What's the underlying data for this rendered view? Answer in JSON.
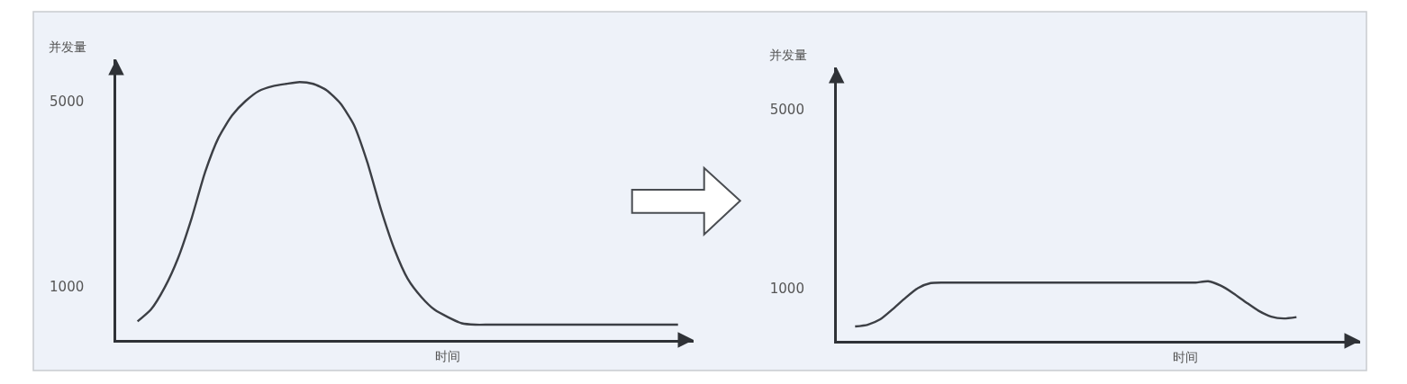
{
  "chart_data": [
    {
      "type": "line",
      "xlabel": "时间",
      "ylabel": "并发量",
      "categories": [
        null,
        null,
        null,
        null,
        null,
        null,
        null,
        null,
        null,
        null,
        null,
        null,
        null,
        null,
        null,
        null,
        null,
        null,
        null,
        null,
        null,
        null,
        null,
        null,
        null,
        null,
        null,
        null,
        null,
        null,
        null,
        null,
        null,
        null,
        null,
        null,
        null,
        null,
        null,
        null,
        null
      ],
      "series": [
        {
          "color": "#3c3f45",
          "values": [
            240,
            500,
            970,
            1610,
            2470,
            3470,
            4220,
            4700,
            5010,
            5230,
            5330,
            5380,
            5420,
            5380,
            5240,
            4960,
            4500,
            3690,
            2680,
            1810,
            1160,
            770,
            490,
            330,
            200,
            170,
            170,
            170,
            170,
            170,
            170,
            170,
            170,
            170,
            170,
            170,
            170,
            170,
            170,
            170,
            170
          ]
        }
      ],
      "ylim": [
        -160,
        5910
      ],
      "yticks": [
        1000,
        5000
      ],
      "tick_labels": "y",
      "grid": false
    },
    {
      "type": "line",
      "xlabel": "时间",
      "ylabel": "并发量",
      "categories": [
        null,
        null,
        null,
        null,
        null,
        null,
        null,
        null,
        null,
        null,
        null,
        null,
        null,
        null,
        null,
        null,
        null,
        null,
        null,
        null,
        null,
        null,
        null,
        null,
        null,
        null,
        null,
        null,
        null,
        null,
        null,
        null,
        null,
        null,
        null,
        null
      ],
      "series": [
        {
          "color": "#3c3f45",
          "values": [
            160,
            200,
            320,
            550,
            800,
            1020,
            1130,
            1140,
            1140,
            1140,
            1140,
            1140,
            1140,
            1140,
            1140,
            1140,
            1140,
            1140,
            1140,
            1140,
            1140,
            1140,
            1140,
            1140,
            1140,
            1140,
            1140,
            1140,
            1170,
            1070,
            900,
            700,
            510,
            380,
            340,
            370
          ]
        }
      ],
      "ylim": [
        -160,
        5940
      ],
      "yticks": [
        1000,
        5000
      ],
      "tick_labels": "y",
      "grid": false
    }
  ]
}
